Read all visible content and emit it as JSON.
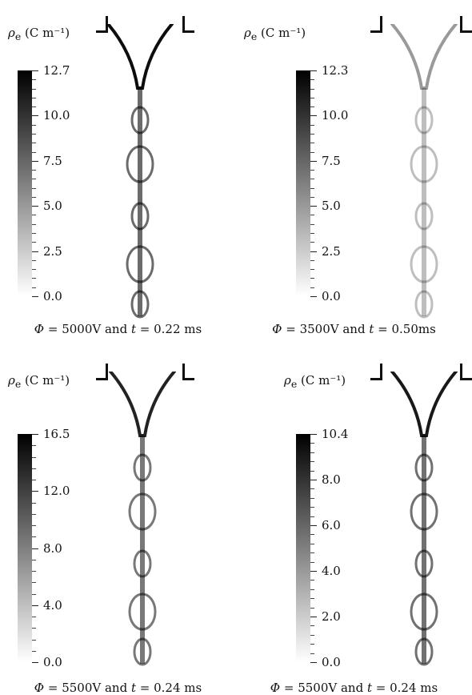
{
  "panels": [
    {
      "unit": {
        "symbol": "ρ",
        "sub": "e",
        "text": "(C m⁻¹)"
      },
      "colorbar": {
        "ticks": [
          "12.7",
          "10.0",
          "7.5",
          "5.0",
          "2.5",
          "0.0"
        ]
      },
      "caption": {
        "phi": "Φ",
        "eq1": " = 5000V and ",
        "t": "t",
        "eq2": " = 0.22 ms"
      },
      "jet_intensity": 1.0
    },
    {
      "unit": {
        "symbol": "ρ",
        "sub": "e",
        "text": "(C m⁻¹)"
      },
      "colorbar": {
        "ticks": [
          "12.3",
          "10.0",
          "7.5",
          "5.0",
          "2.5",
          "0.0"
        ]
      },
      "caption": {
        "phi": "Φ",
        "eq1": " = 3500V and ",
        "t": "t",
        "eq2": " = 0.50ms"
      },
      "jet_intensity": 0.35
    },
    {
      "unit": {
        "symbol": "ρ",
        "sub": "e",
        "text": "(C m⁻¹)"
      },
      "colorbar": {
        "ticks": [
          "16.5",
          "12.0",
          "8.0",
          "4.0",
          "0.0"
        ]
      },
      "caption": {
        "phi": "Φ",
        "eq1": " = 5500V and ",
        "t": "t",
        "eq2": " = 0.24 ms"
      },
      "jet_intensity": 0.9
    },
    {
      "unit": {
        "symbol": "ρ",
        "sub": "e",
        "text": "(C m⁻¹)"
      },
      "colorbar": {
        "ticks": [
          "10.4",
          "8.0",
          "6.0",
          "4.0",
          "2.0",
          "0.0"
        ]
      },
      "caption": {
        "phi": "Φ",
        "eq1": " = 5500V and ",
        "t": "t",
        "eq2": " = 0.24 ms"
      },
      "jet_intensity": 0.95
    }
  ],
  "colors": {
    "high": "#000000",
    "low": "#ffffff"
  }
}
